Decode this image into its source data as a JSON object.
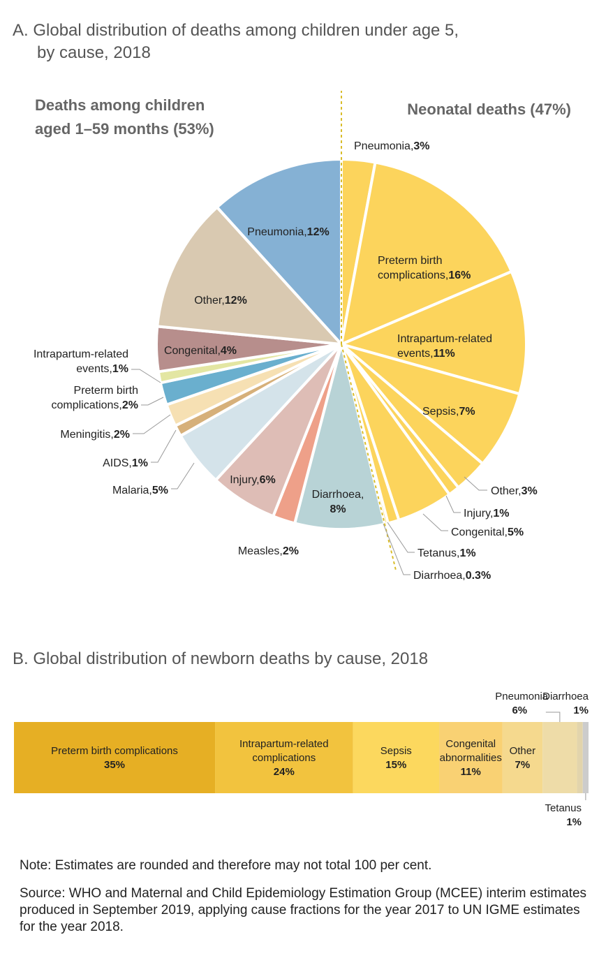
{
  "title_a_line1": "A. Global distribution of deaths among children under age 5,",
  "title_a_line2": "by cause, 2018",
  "title_b": "B. Global distribution of newborn deaths by cause, 2018",
  "note": "Note: Estimates are rounded and therefore may not total 100 per cent.",
  "source": "Source: WHO and Maternal and Child Epidemiology Estimation Group (MCEE) interim estimates produced in September 2019, applying cause fractions for the year 2017 to UN IGME estimates for the year 2018.",
  "chart_data": [
    {
      "type": "pie",
      "groups": [
        {
          "name_line1": "Deaths among children",
          "name_line2": "aged 1–59 months (53%)"
        },
        {
          "name_line1": "Neonatal deaths (47%)",
          "name_line2": ""
        }
      ],
      "slices": [
        {
          "group": "Neonatal deaths",
          "label": "Pneumonia,",
          "value_label": "3%",
          "value": 3,
          "color": "#FCD45C"
        },
        {
          "group": "Neonatal deaths",
          "label": "Preterm birth complications,",
          "value_label": "16%",
          "value": 16,
          "color": "#FCD45C"
        },
        {
          "group": "Neonatal deaths",
          "label": "Intrapartum-related events,",
          "value_label": "11%",
          "value": 11,
          "color": "#FCD45C"
        },
        {
          "group": "Neonatal deaths",
          "label": "Sepsis,",
          "value_label": "7%",
          "value": 7,
          "color": "#FCD45C"
        },
        {
          "group": "Neonatal deaths",
          "label": "Other,",
          "value_label": "3%",
          "value": 3,
          "color": "#FCD45C"
        },
        {
          "group": "Neonatal deaths",
          "label": "Injury,",
          "value_label": "1%",
          "value": 1,
          "color": "#FCD45C"
        },
        {
          "group": "Neonatal deaths",
          "label": "Congenital,",
          "value_label": "5%",
          "value": 5,
          "color": "#FCD45C"
        },
        {
          "group": "Neonatal deaths",
          "label": "Tetanus,",
          "value_label": "1%",
          "value": 1,
          "color": "#FCD45C"
        },
        {
          "group": "Neonatal deaths",
          "label": "Diarrhoea,",
          "value_label": "0.3%",
          "value": 0.3,
          "color": "#FCD45C"
        },
        {
          "group": "Deaths among children aged 1–59 months",
          "label": "Diarrhoea,",
          "value_label": "8%",
          "value": 8,
          "color": "#B8D3D6"
        },
        {
          "group": "Deaths among children aged 1–59 months",
          "label": "Measles,",
          "value_label": "2%",
          "value": 2,
          "color": "#EEA089"
        },
        {
          "group": "Deaths among children aged 1–59 months",
          "label": "Injury,",
          "value_label": "6%",
          "value": 6,
          "color": "#DEBDB6"
        },
        {
          "group": "Deaths among children aged 1–59 months",
          "label": "Malaria,",
          "value_label": "5%",
          "value": 5,
          "color": "#D4E3EA"
        },
        {
          "group": "Deaths among children aged 1–59 months",
          "label": "AIDS,",
          "value_label": "1%",
          "value": 1,
          "color": "#D6B07A"
        },
        {
          "group": "Deaths among children aged 1–59 months",
          "label": "Meningitis,",
          "value_label": "2%",
          "value": 2,
          "color": "#F6E0B3"
        },
        {
          "group": "Deaths among children aged 1–59 months",
          "label": "Preterm birth complications,",
          "value_label": "2%",
          "value": 2,
          "color": "#6AAFCE"
        },
        {
          "group": "Deaths among children aged 1–59 months",
          "label": "Intrapartum-related events,",
          "value_label": "1%",
          "value": 1,
          "color": "#E3E6A2"
        },
        {
          "group": "Deaths among children aged 1–59 months",
          "label": "Congenital,",
          "value_label": "4%",
          "value": 4,
          "color": "#B78E8C"
        },
        {
          "group": "Deaths among children aged 1–59 months",
          "label": "Other,",
          "value_label": "12%",
          "value": 12,
          "color": "#D9C9B1"
        },
        {
          "group": "Deaths among children aged 1–59 months",
          "label": "Pneumonia,",
          "value_label": "12%",
          "value": 12,
          "color": "#85B1D4"
        }
      ]
    },
    {
      "type": "bar",
      "orientation": "horizontal-stacked",
      "segments": [
        {
          "label": "Preterm birth complications",
          "value_label": "35%",
          "value": 35,
          "color": "#E6AF24"
        },
        {
          "label": "Intrapartum-related complications",
          "value_label": "24%",
          "value": 24,
          "color": "#F2C33E"
        },
        {
          "label": "Sepsis",
          "value_label": "15%",
          "value": 15,
          "color": "#FCD85E"
        },
        {
          "label": "Congenital abnormalities",
          "value_label": "11%",
          "value": 11,
          "color": "#F9D173"
        },
        {
          "label": "Other",
          "value_label": "7%",
          "value": 7,
          "color": "#F5D98E"
        },
        {
          "label": "Pneumonia",
          "value_label": "6%",
          "value": 6,
          "color": "#EEDCA8"
        },
        {
          "label": "Diarrhoea",
          "value_label": "1%",
          "value": 1,
          "color": "#E2D4AC"
        },
        {
          "label": "Tetanus",
          "value_label": "1%",
          "value": 1,
          "color": "#CCCCCC"
        }
      ]
    }
  ]
}
